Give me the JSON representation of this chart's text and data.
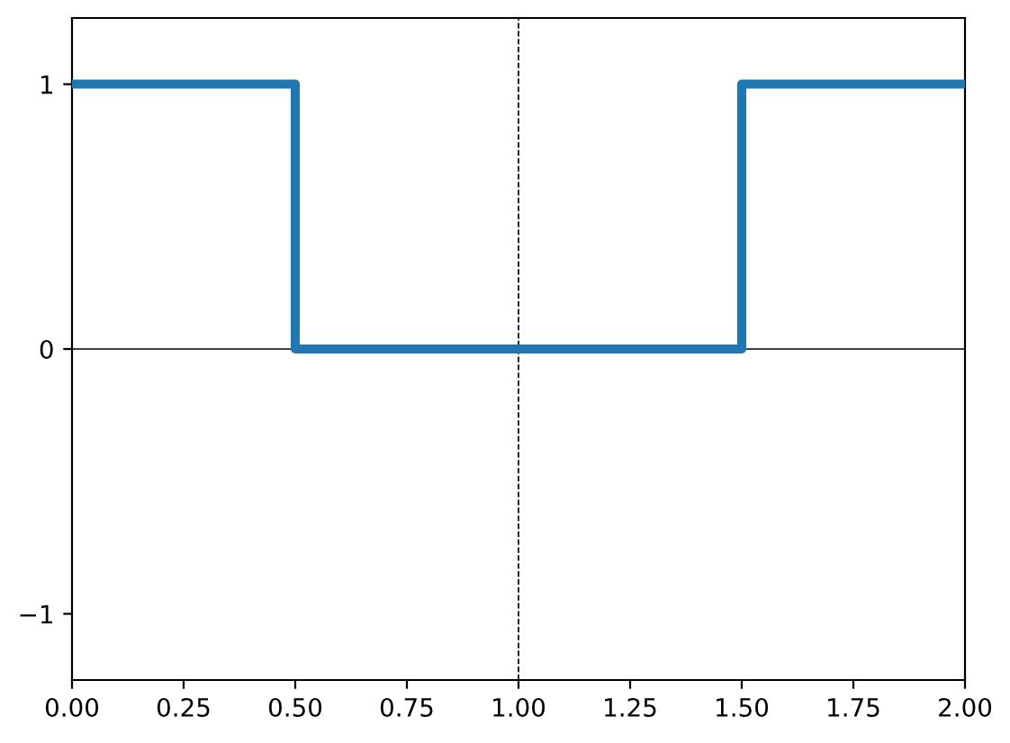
{
  "chart_data": {
    "type": "step",
    "x": [
      0,
      0.5,
      1.5,
      2
    ],
    "values": [
      1,
      0,
      1,
      1
    ],
    "color": "#1f77b4",
    "line_style": "solid",
    "xlim": [
      0,
      2
    ],
    "ylim": [
      -1.25,
      1.25
    ],
    "xticks": [
      {
        "value": 0,
        "label": "0.00"
      },
      {
        "value": 0.25,
        "label": "0.25"
      },
      {
        "value": 0.5,
        "label": "0.50"
      },
      {
        "value": 0.75,
        "label": "0.75"
      },
      {
        "value": 1,
        "label": "1.00"
      },
      {
        "value": 1.25,
        "label": "1.25"
      },
      {
        "value": 1.5,
        "label": "1.50"
      },
      {
        "value": 1.75,
        "label": "1.75"
      },
      {
        "value": 2,
        "label": "2.00"
      }
    ],
    "yticks": [
      {
        "value": -1,
        "label": "−1"
      },
      0,
      1
    ],
    "ref_lines": [
      {
        "axis": "y",
        "value": 0,
        "color": "#000000",
        "line_style": "solid"
      },
      {
        "axis": "x",
        "value": 1,
        "color": "#000000",
        "line_style": "dashed"
      }
    ],
    "grid": false
  }
}
